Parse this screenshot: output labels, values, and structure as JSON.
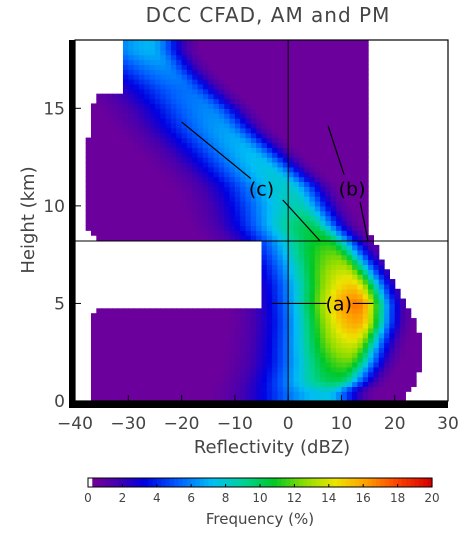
{
  "chart_data": {
    "type": "heatmap",
    "title": "DCC CFAD, AM and PM",
    "xlabel": "Reflectivity (dBZ)",
    "ylabel": "Height (km)",
    "xlim": [
      -40,
      30
    ],
    "ylim": [
      0,
      18.5
    ],
    "x_ticks": [
      "-40",
      "-30",
      "-20",
      "-10",
      "0",
      "10",
      "20",
      "30"
    ],
    "y_ticks": [
      "0",
      "5",
      "10",
      "15"
    ],
    "colorbar": {
      "label": "Frequency (%)",
      "range": [
        0,
        20
      ],
      "ticks": [
        "0",
        "2",
        "4",
        "6",
        "8",
        "10",
        "12",
        "14",
        "16",
        "18",
        "20"
      ],
      "colormap": "rainbow"
    },
    "reference_lines": {
      "vertical_x": 0,
      "horizontal_y": 8.2
    },
    "annotations": [
      {
        "label": "(a)",
        "text_at": [
          9.5,
          5.0
        ],
        "line_from": [
          -3,
          5.0
        ],
        "line_to": [
          16,
          5.0
        ]
      },
      {
        "label": "(b)",
        "text_at": [
          12.0,
          10.9
        ],
        "lines": [
          [
            [
              10.5,
              11.6
            ],
            [
              7.5,
              14.1
            ]
          ],
          [
            [
              13.5,
              10.2
            ],
            [
              15.0,
              8.2
            ]
          ]
        ]
      },
      {
        "label": "(c)",
        "text_at": [
          -5.0,
          10.9
        ],
        "lines": [
          [
            [
              -7.0,
              11.4
            ],
            [
              -20.0,
              14.3
            ]
          ],
          [
            [
              -1.0,
              10.3
            ],
            [
              6.0,
              8.2
            ]
          ]
        ]
      }
    ],
    "blank_regions": [
      {
        "x": [
          -40,
          -5
        ],
        "y": [
          4.7,
          8.2
        ]
      },
      {
        "x": [
          -40,
          -31
        ],
        "y": [
          15.8,
          18.5
        ]
      }
    ],
    "distribution_model": {
      "rows_km": [
        0.5,
        1.0,
        2.0,
        3.0,
        4.0,
        5.0,
        6.0,
        7.0,
        8.2,
        9.0,
        10.0,
        11.0,
        12.0,
        13.0,
        14.0,
        15.0,
        16.0,
        17.0,
        18.0
      ],
      "mode_dbz": [
        7,
        9,
        11,
        12,
        13,
        13,
        12,
        10,
        7,
        4,
        2,
        0,
        -4,
        -8,
        -12,
        -15,
        -19,
        -23,
        -26
      ],
      "peak_frequency": [
        7.5,
        10,
        12,
        14,
        16,
        17,
        15,
        13,
        11,
        10,
        8.5,
        8,
        7.5,
        7,
        6.5,
        6,
        5.5,
        6,
        7
      ],
      "right_edge_dbz": [
        22,
        24,
        25,
        25,
        24,
        22,
        20,
        18,
        16,
        15,
        15,
        15,
        15,
        15,
        15,
        15,
        15,
        15,
        15
      ],
      "left_edge_dbz": [
        -37,
        -37,
        -37,
        -37,
        -37,
        -36,
        -36,
        -36,
        -36,
        -38,
        -38,
        -38,
        -38,
        -38,
        -37,
        -37,
        -35,
        -33,
        -32
      ]
    }
  }
}
